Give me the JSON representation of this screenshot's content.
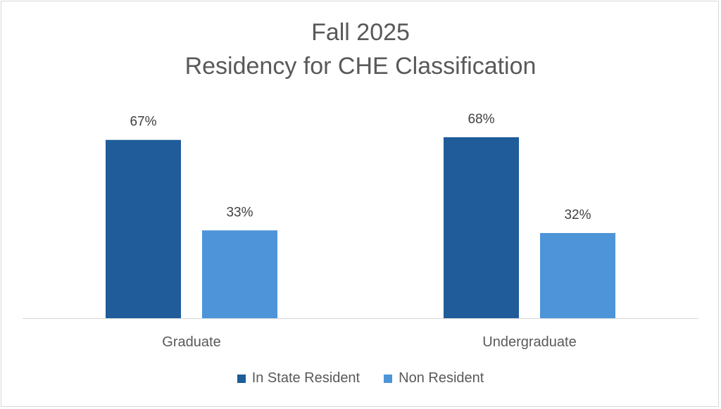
{
  "chart_data": {
    "type": "bar",
    "title": "Fall 2025",
    "subtitle": "Residency for CHE Classification",
    "categories": [
      "Graduate",
      "Undergraduate"
    ],
    "series": [
      {
        "name": "In State Resident",
        "values": [
          67,
          68
        ],
        "labels": [
          "67%",
          "68%"
        ],
        "color": "#1f5c99"
      },
      {
        "name": "Non Resident",
        "values": [
          33,
          32
        ],
        "labels": [
          "33%",
          "32%"
        ],
        "color": "#4d94d9"
      }
    ],
    "ylim": [
      0,
      100
    ],
    "grid": false,
    "legend": "bottom"
  }
}
